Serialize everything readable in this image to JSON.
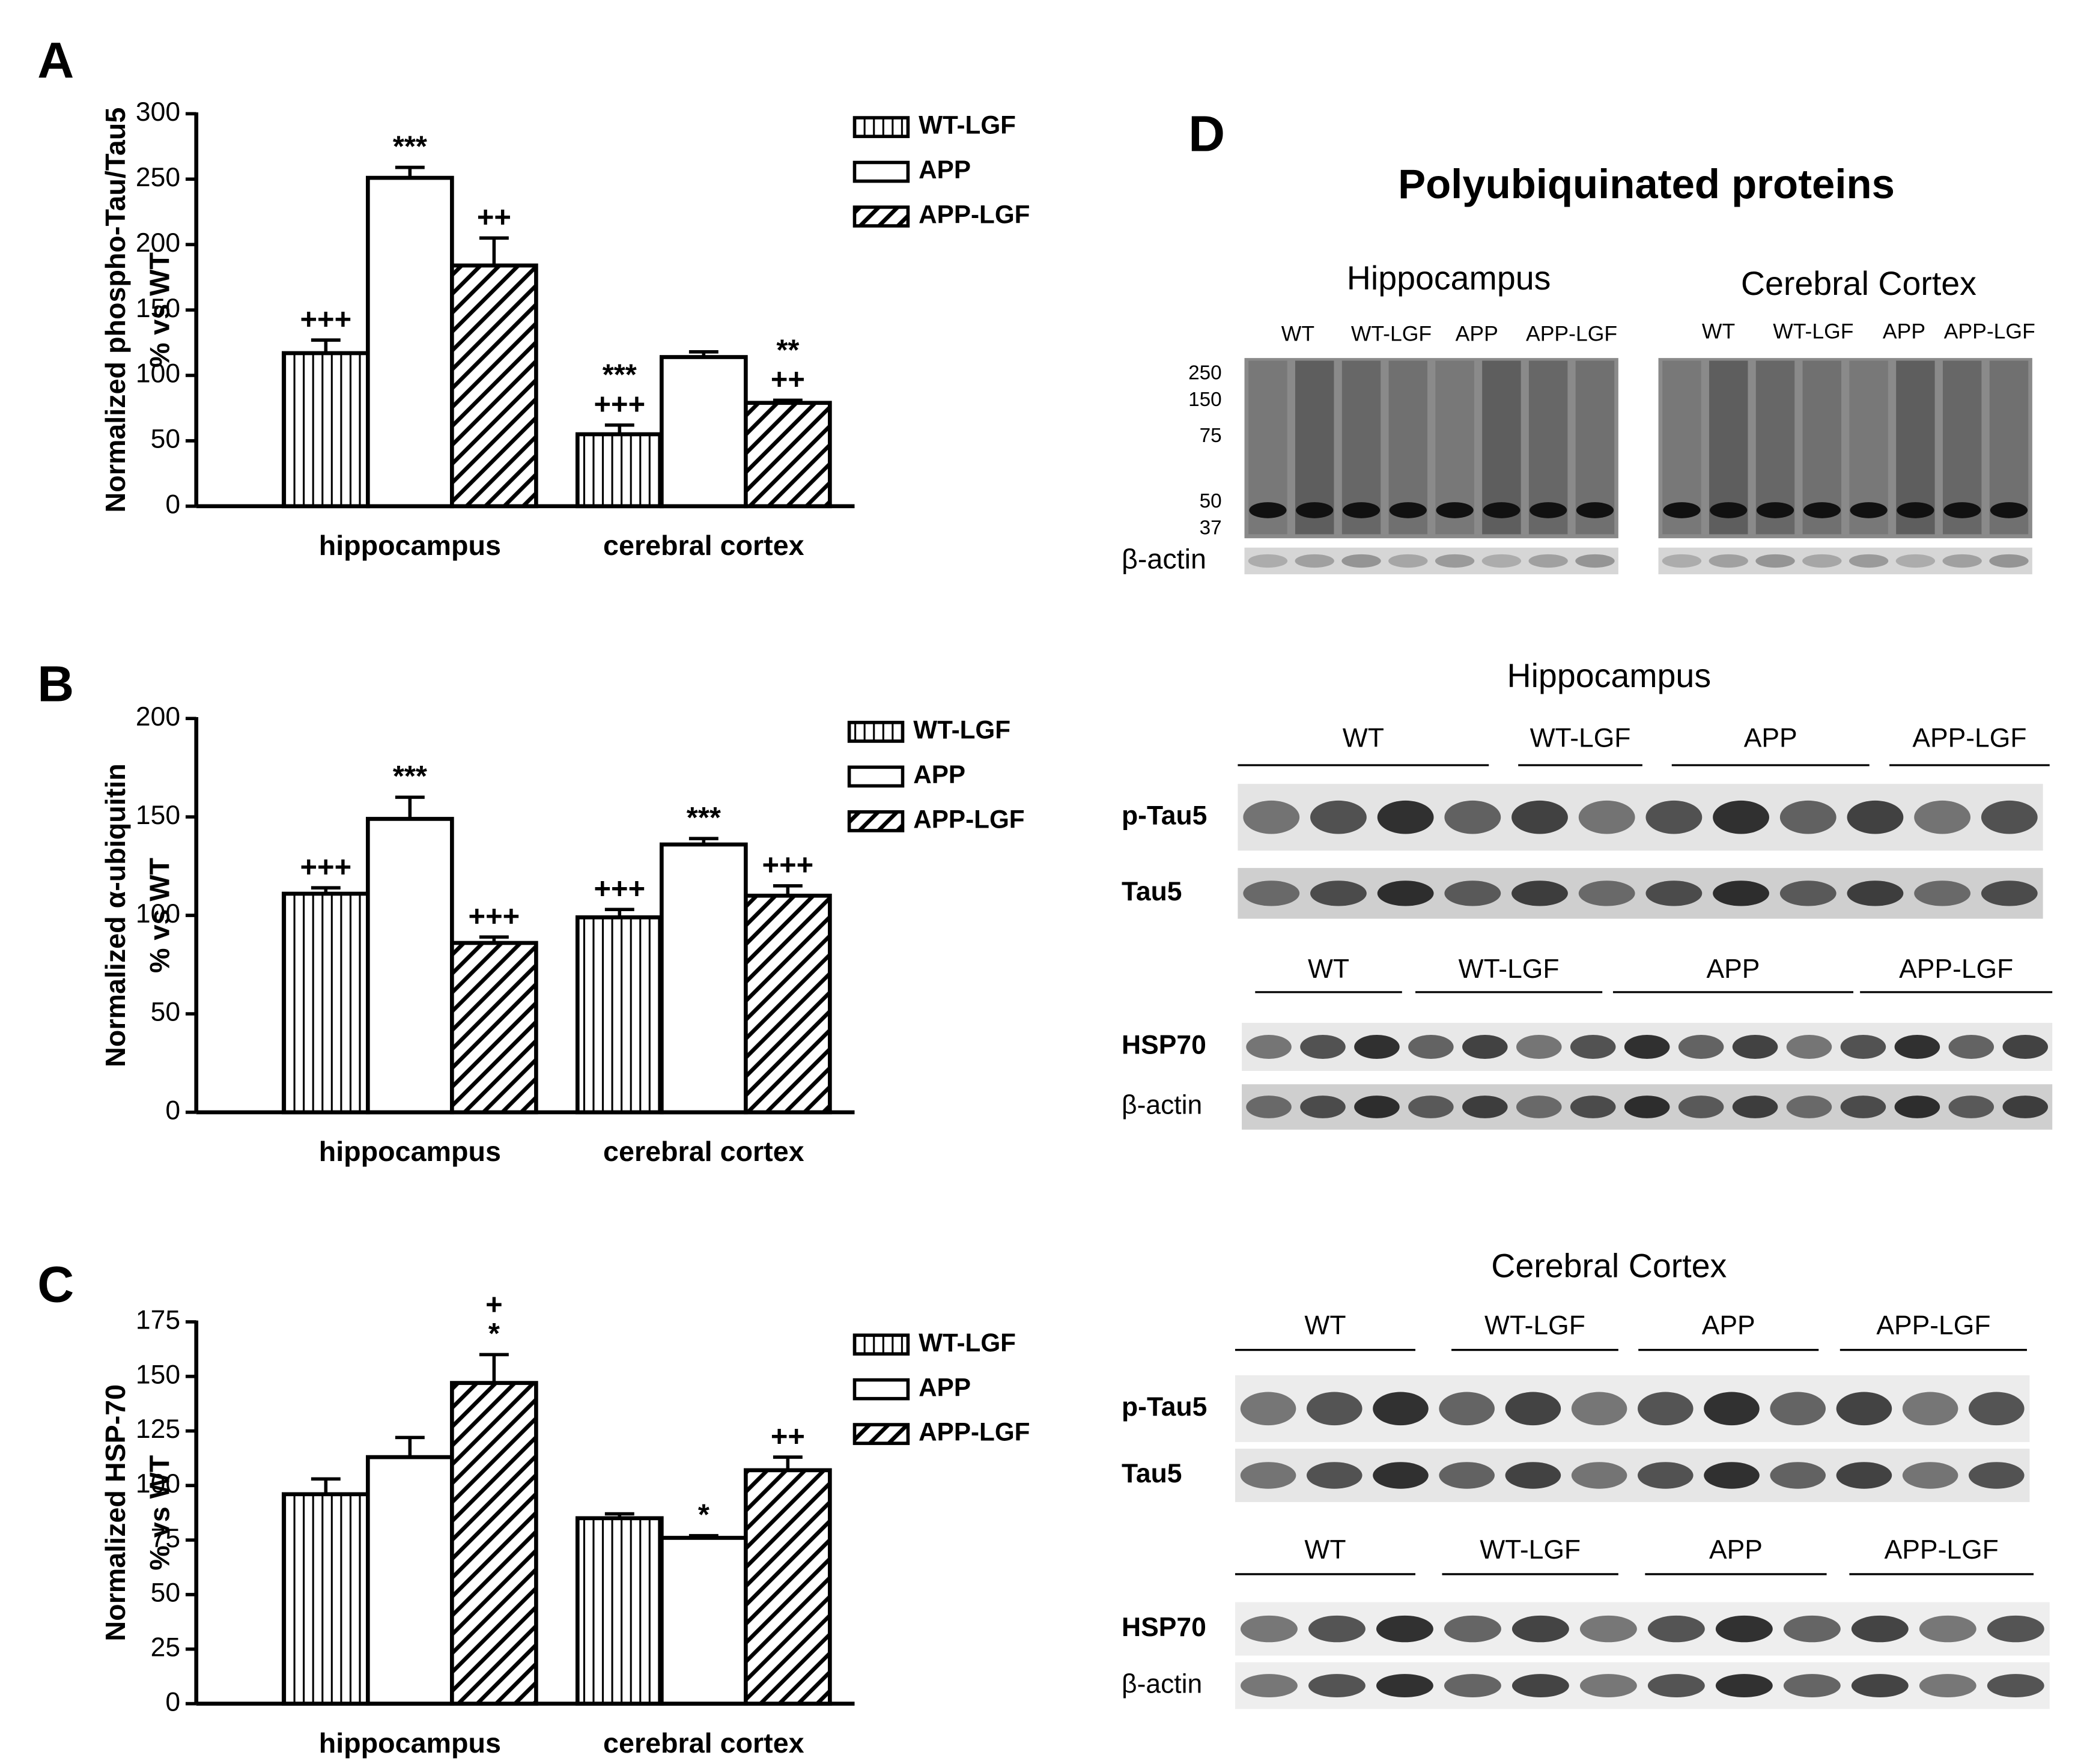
{
  "chart_data": [
    {
      "type": "bar",
      "panel": "A",
      "ylabel": [
        "Normalized phospho-Tau/Tau5",
        "% vs WT"
      ],
      "categories": [
        "hippocampus",
        "cerebral cortex"
      ],
      "series": [
        {
          "name": "WT-LGF",
          "color": "#000000",
          "pattern": "vertical",
          "values": [
            117,
            55
          ],
          "errors": [
            10,
            7
          ],
          "annotations": [
            [
              "+++"
            ],
            [
              "***",
              "+++"
            ]
          ]
        },
        {
          "name": "APP",
          "color": "#000000",
          "pattern": "none",
          "values": [
            251,
            114
          ],
          "errors": [
            8,
            4
          ],
          "annotations": [
            [
              "***"
            ],
            []
          ]
        },
        {
          "name": "APP-LGF",
          "color": "#000000",
          "pattern": "diagonal",
          "values": [
            184,
            79
          ],
          "errors": [
            21,
            2
          ],
          "annotations": [
            [
              "++"
            ],
            [
              "**",
              "++"
            ]
          ]
        }
      ],
      "ylim": [
        0,
        300
      ],
      "yticks": [
        0,
        50,
        100,
        150,
        200,
        250,
        300
      ]
    },
    {
      "type": "bar",
      "panel": "B",
      "ylabel": [
        "Normalized α-ubiquitin",
        "% vs WT"
      ],
      "categories": [
        "hippocampus",
        "cerebral cortex"
      ],
      "series": [
        {
          "name": "WT-LGF",
          "color": "#000000",
          "pattern": "vertical",
          "values": [
            111,
            99
          ],
          "errors": [
            3,
            4
          ],
          "annotations": [
            [
              "+++"
            ],
            [
              "+++"
            ]
          ]
        },
        {
          "name": "APP",
          "color": "#000000",
          "pattern": "none",
          "values": [
            149,
            136
          ],
          "errors": [
            11,
            3
          ],
          "annotations": [
            [
              "***"
            ],
            [
              "***"
            ]
          ]
        },
        {
          "name": "APP-LGF",
          "color": "#000000",
          "pattern": "diagonal",
          "values": [
            86,
            110
          ],
          "errors": [
            3,
            5
          ],
          "annotations": [
            [
              "+++"
            ],
            [
              "+++"
            ]
          ]
        }
      ],
      "ylim": [
        0,
        200
      ],
      "yticks": [
        0,
        50,
        100,
        150,
        200
      ]
    },
    {
      "type": "bar",
      "panel": "C",
      "ylabel": [
        "Normalized HSP-70",
        "% vs WT"
      ],
      "categories": [
        "hippocampus",
        "cerebral cortex"
      ],
      "series": [
        {
          "name": "WT-LGF",
          "color": "#000000",
          "pattern": "vertical",
          "values": [
            96,
            85
          ],
          "errors": [
            7,
            2
          ],
          "annotations": [
            [],
            []
          ]
        },
        {
          "name": "APP",
          "color": "#000000",
          "pattern": "none",
          "values": [
            113,
            76
          ],
          "errors": [
            9,
            1
          ],
          "annotations": [
            [],
            [
              "*"
            ]
          ]
        },
        {
          "name": "APP-LGF",
          "color": "#000000",
          "pattern": "diagonal",
          "values": [
            147,
            107
          ],
          "errors": [
            13,
            6
          ],
          "annotations": [
            [
              "+",
              "*"
            ],
            [
              "++"
            ]
          ]
        }
      ],
      "ylim": [
        0,
        175
      ],
      "yticks": [
        0,
        25,
        50,
        75,
        100,
        125,
        150,
        175
      ]
    }
  ],
  "blots": {
    "panel": "D",
    "title": "Polyubiquinated proteins",
    "top": [
      {
        "title": "Hippocampus",
        "groups": [
          "WT",
          "WT-LGF",
          "APP",
          "APP-LGF"
        ]
      },
      {
        "title": "Cerebral Cortex",
        "groups": [
          "WT",
          "WT-LGF",
          "APP",
          "APP-LGF"
        ]
      }
    ],
    "markers": [
      "250",
      "150",
      "75",
      "50",
      "37"
    ],
    "loading": "β-actin",
    "sections": [
      {
        "title": "Hippocampus",
        "rows": [
          {
            "groups": [
              "WT",
              "WT-LGF",
              "APP",
              "APP-LGF"
            ],
            "lanes": [
              "p-Tau5",
              "Tau5"
            ]
          },
          {
            "groups": [
              "WT",
              "WT-LGF",
              "APP",
              "APP-LGF"
            ],
            "lanes": [
              "HSP70",
              "β-actin"
            ]
          }
        ]
      },
      {
        "title": "Cerebral Cortex",
        "rows": [
          {
            "groups": [
              "WT",
              "WT-LGF",
              "APP",
              "APP-LGF"
            ],
            "lanes": [
              "p-Tau5",
              "Tau5"
            ]
          },
          {
            "groups": [
              "WT",
              "WT-LGF",
              "APP",
              "APP-LGF"
            ],
            "lanes": [
              "HSP70",
              "β-actin"
            ]
          }
        ]
      }
    ]
  }
}
